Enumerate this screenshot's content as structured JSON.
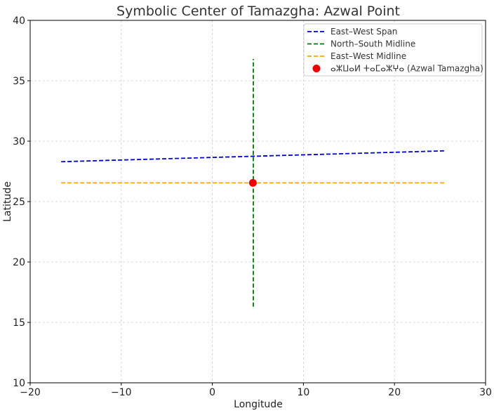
{
  "chart_data": {
    "type": "line",
    "title": "Symbolic Center of Tamazgha: Azwal Point",
    "xlabel": "Longitude",
    "ylabel": "Latitude",
    "xlim": [
      -20,
      30
    ],
    "ylim": [
      10,
      40
    ],
    "xticks": [
      -20,
      -10,
      0,
      10,
      20,
      30
    ],
    "yticks": [
      10,
      15,
      20,
      25,
      30,
      35,
      40
    ],
    "grid": true,
    "legend_position": "top-right",
    "series": [
      {
        "name": "East–West Span",
        "style": "dashed",
        "color": "#0000cc",
        "x": [
          -16.6,
          25.5
        ],
        "y": [
          28.3,
          29.2
        ]
      },
      {
        "name": "North–South Midline",
        "style": "dashed",
        "color": "#007700",
        "x": [
          4.5,
          4.5
        ],
        "y": [
          16.3,
          36.8
        ]
      },
      {
        "name": "East–West Midline",
        "style": "dashed",
        "color": "#ffa500",
        "x": [
          -16.6,
          25.5
        ],
        "y": [
          26.55,
          26.55
        ]
      },
      {
        "name": "ⴰⵣⵡⴰⵍ ⵜⴰⵎⴰⵣⵖⴰ (Azwal Tamazgha)",
        "style": "point",
        "color": "#ee0000",
        "x": [
          4.45
        ],
        "y": [
          26.55
        ]
      }
    ]
  }
}
